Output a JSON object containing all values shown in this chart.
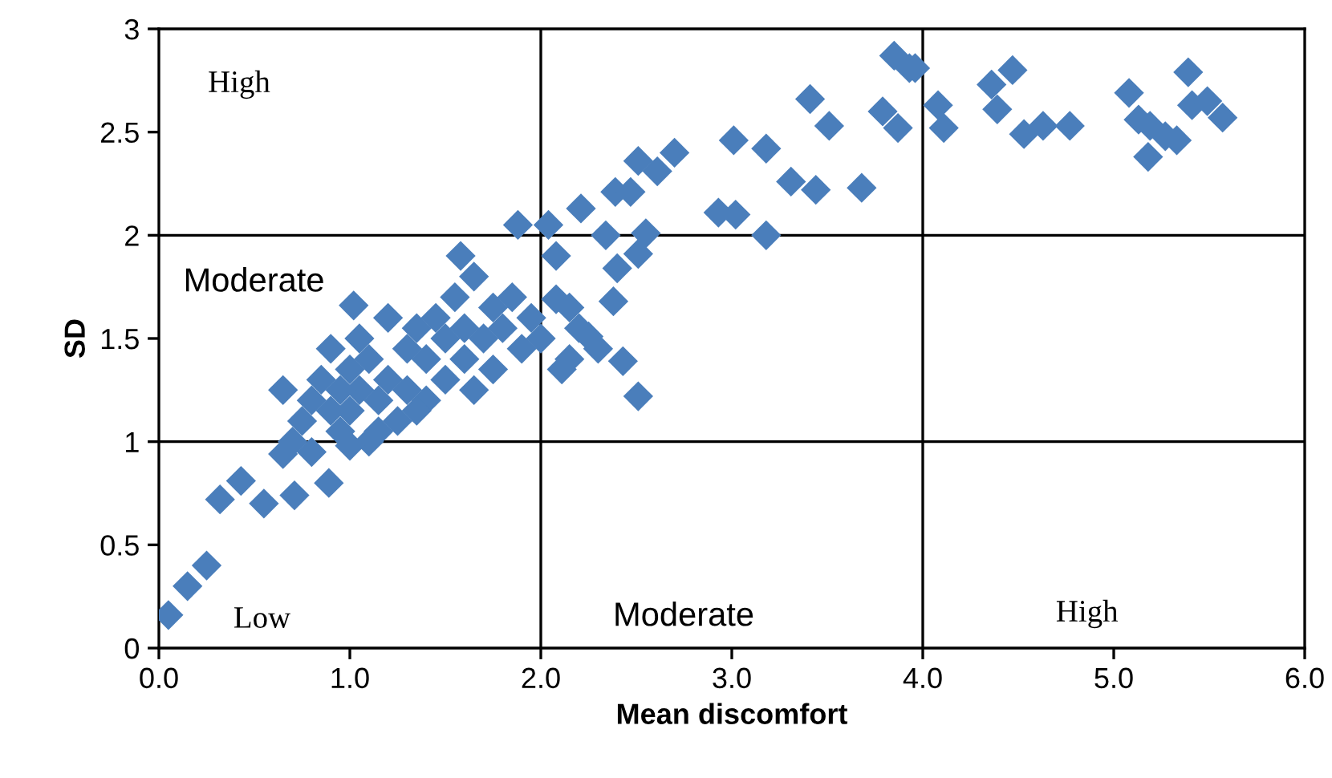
{
  "chart_data": {
    "type": "scatter",
    "xlabel": "Mean discomfort",
    "ylabel": "SD",
    "marker": "diamond",
    "grid": false,
    "legend": false,
    "xlim": [
      0,
      6
    ],
    "ylim": [
      0,
      3
    ],
    "xticks": [
      {
        "value": 0,
        "label": "0.0"
      },
      {
        "value": 1,
        "label": "1.0"
      },
      {
        "value": 2,
        "label": "2.0"
      },
      {
        "value": 3,
        "label": "3.0"
      },
      {
        "value": 4,
        "label": "4.0"
      },
      {
        "value": 5,
        "label": "5.0"
      },
      {
        "value": 6,
        "label": "6.0"
      }
    ],
    "yticks": [
      0,
      0.5,
      1,
      1.5,
      2,
      2.5,
      3
    ],
    "ref_lines": [
      {
        "axis": "x",
        "value": 2,
        "color": "#000000"
      },
      {
        "axis": "x",
        "value": 4,
        "color": "#000000"
      },
      {
        "axis": "y",
        "value": 1,
        "color": "#000000"
      },
      {
        "axis": "y",
        "value": 2,
        "color": "#000000"
      }
    ],
    "annotations": [
      "High",
      "Moderate",
      "Low",
      "Moderate",
      "High"
    ],
    "series": [
      {
        "color": "#4a7ebb",
        "x": [
          0.05,
          0.15,
          0.25,
          0.32,
          0.43,
          0.55,
          0.71,
          0.89,
          0.65,
          1.02,
          1.58,
          1.88,
          0.65,
          0.7,
          0.75,
          0.8,
          0.85,
          0.9,
          0.95,
          1.0,
          1.0,
          1.05,
          1.05,
          1.1,
          1.1,
          1.15,
          1.2,
          1.2,
          1.25,
          1.3,
          1.3,
          1.35,
          1.4,
          1.4,
          1.45,
          1.5,
          1.5,
          1.55,
          1.6,
          1.6,
          1.65,
          1.65,
          1.7,
          1.75,
          1.75,
          1.8,
          1.85,
          1.9,
          1.95,
          2.0,
          0.8,
          0.9,
          1.0,
          1.15,
          0.95,
          1.35,
          2.15,
          2.2,
          2.3,
          2.15,
          3.85,
          3.93,
          3.41,
          3.51,
          3.79,
          3.87,
          3.01,
          3.18,
          2.7,
          2.61,
          2.51,
          2.39,
          2.47,
          3.31,
          3.44,
          3.68,
          2.93,
          3.02,
          3.18,
          2.21,
          2.04,
          2.34,
          2.55,
          2.51,
          2.4,
          2.08,
          2.38,
          2.08,
          2.25,
          2.11,
          2.43,
          2.51,
          3.96,
          4.08,
          4.11,
          4.36,
          4.39,
          4.47,
          4.53,
          4.63,
          4.77,
          5.08,
          5.13,
          5.19,
          5.27,
          5.33,
          5.18,
          5.39,
          5.41,
          5.49,
          5.57
        ],
        "values": [
          0.16,
          0.3,
          0.4,
          0.72,
          0.81,
          0.7,
          0.74,
          0.8,
          0.94,
          1.66,
          1.9,
          2.05,
          1.25,
          1.0,
          1.1,
          1.2,
          1.3,
          1.45,
          1.05,
          1.15,
          1.35,
          1.25,
          1.5,
          1.0,
          1.4,
          1.2,
          1.3,
          1.6,
          1.1,
          1.45,
          1.25,
          1.55,
          1.2,
          1.4,
          1.6,
          1.3,
          1.5,
          1.7,
          1.4,
          1.55,
          1.25,
          1.8,
          1.5,
          1.35,
          1.65,
          1.55,
          1.7,
          1.45,
          1.6,
          1.5,
          0.95,
          1.15,
          0.98,
          1.05,
          1.25,
          1.15,
          1.4,
          1.55,
          1.45,
          1.65,
          2.87,
          2.81,
          2.66,
          2.53,
          2.6,
          2.52,
          2.46,
          2.42,
          2.4,
          2.31,
          2.36,
          2.21,
          2.21,
          2.26,
          2.22,
          2.23,
          2.11,
          2.1,
          2.0,
          2.13,
          2.05,
          2.0,
          2.01,
          1.91,
          1.84,
          1.9,
          1.68,
          1.69,
          1.51,
          1.35,
          1.39,
          1.22,
          2.81,
          2.63,
          2.52,
          2.73,
          2.61,
          2.8,
          2.49,
          2.53,
          2.53,
          2.69,
          2.56,
          2.53,
          2.48,
          2.46,
          2.38,
          2.79,
          2.63,
          2.65,
          2.57
        ]
      }
    ]
  }
}
